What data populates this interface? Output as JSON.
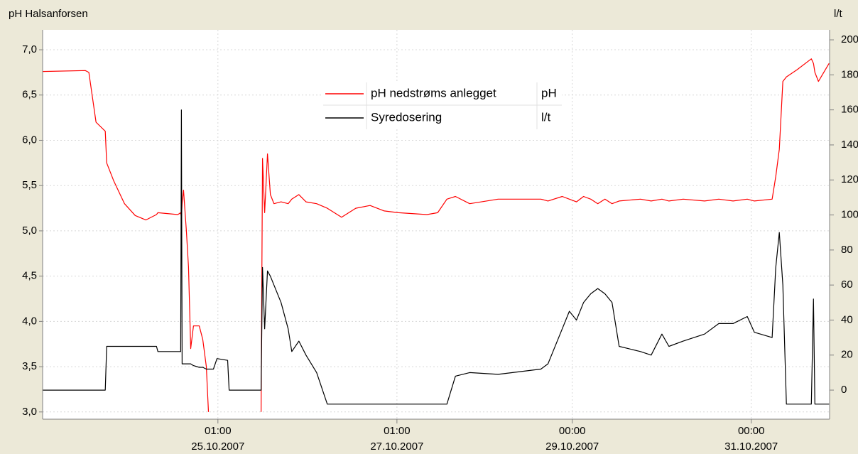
{
  "chart_data": {
    "type": "line",
    "title": "pH Halsanforsen",
    "y2label": "l/t",
    "xlim": [
      "2007-10-23 02:00",
      "2007-10-31 21:00"
    ],
    "xticks": [
      {
        "value": "2007-10-25 01:00",
        "label": [
          "01:00",
          "25.10.2007"
        ]
      },
      {
        "value": "2007-10-27 01:00",
        "label": [
          "01:00",
          "27.10.2007"
        ]
      },
      {
        "value": "2007-10-29 00:00",
        "label": [
          "00:00",
          "29.10.2007"
        ]
      },
      {
        "value": "2007-10-31 00:00",
        "label": [
          "00:00",
          "31.10.2007"
        ]
      }
    ],
    "ylim": [
      2.92,
      7.22
    ],
    "yticks": [
      {
        "value": 3,
        "label": "3,0"
      },
      {
        "value": 3.5,
        "label": "3,5"
      },
      {
        "value": 4,
        "label": "4,0"
      },
      {
        "value": 4.5,
        "label": "4,5"
      },
      {
        "value": 5,
        "label": "5,0"
      },
      {
        "value": 5.5,
        "label": "5,5"
      },
      {
        "value": 6,
        "label": "6,0"
      },
      {
        "value": 6.5,
        "label": "6,5"
      },
      {
        "value": 7,
        "label": "7,0"
      }
    ],
    "y2lim": [
      -16.6,
      205.7
    ],
    "y2ticks": [
      0,
      20,
      40,
      60,
      80,
      100,
      120,
      140,
      160,
      180,
      200
    ],
    "grid": true,
    "x": [
      "2007-10-23 02:00",
      "2007-10-23 13:27",
      "2007-10-23 14:24",
      "2007-10-23 16:19",
      "2007-10-23 18:48",
      "2007-10-23 19:11",
      "2007-10-23 21:05",
      "2007-10-23 23:57",
      "2007-10-24 02:49",
      "2007-10-24 05:40",
      "2007-10-24 08:32",
      "2007-10-24 08:55",
      "2007-10-24 14:16",
      "2007-10-24 15:01",
      "2007-10-24 15:13",
      "2007-10-24 15:24",
      "2007-10-24 15:47",
      "2007-10-24 16:33",
      "2007-10-24 17:07",
      "2007-10-24 17:42",
      "2007-10-24 18:27",
      "2007-10-24 19:59",
      "2007-10-24 20:56",
      "2007-10-24 21:54",
      "2007-10-24 22:28",
      "2007-10-24 23:48",
      "2007-10-25 00:45",
      "2007-10-25 03:37",
      "2007-10-25 04:00",
      "2007-10-25 12:12",
      "2007-10-25 12:35",
      "2007-10-25 12:58",
      "2007-10-25 13:32",
      "2007-10-25 14:18",
      "2007-10-25 15:04",
      "2007-10-25 16:01",
      "2007-10-25 17:56",
      "2007-10-25 19:50",
      "2007-10-25 20:48",
      "2007-10-25 22:42",
      "2007-10-26 00:37",
      "2007-10-26 03:28",
      "2007-10-26 06:20",
      "2007-10-26 10:09",
      "2007-10-26 13:58",
      "2007-10-26 17:47",
      "2007-10-26 21:36",
      "2007-10-27 01:25",
      "2007-10-27 09:03",
      "2007-10-27 11:55",
      "2007-10-27 14:24",
      "2007-10-27 16:41",
      "2007-10-27 20:30",
      "2007-10-28 04:08",
      "2007-10-28 15:35",
      "2007-10-28 17:30",
      "2007-10-28 21:19",
      "2007-10-28 23:13",
      "2007-10-29 01:08",
      "2007-10-29 03:02",
      "2007-10-29 04:57",
      "2007-10-29 06:51",
      "2007-10-29 08:46",
      "2007-10-29 10:40",
      "2007-10-29 12:35",
      "2007-10-29 18:18",
      "2007-10-29 21:10",
      "2007-10-30 00:02",
      "2007-10-30 01:56",
      "2007-10-30 05:45",
      "2007-10-30 11:29",
      "2007-10-30 15:18",
      "2007-10-30 19:07",
      "2007-10-30 22:56",
      "2007-10-31 00:50",
      "2007-10-31 05:36",
      "2007-10-31 06:34",
      "2007-10-31 07:31",
      "2007-10-31 08:28",
      "2007-10-31 09:25",
      "2007-10-31 12:17",
      "2007-10-31 16:06",
      "2007-10-31 16:41",
      "2007-10-31 17:03",
      "2007-10-31 18:01",
      "2007-10-31 20:52"
    ],
    "series": [
      {
        "name": "pH nedstrøms anlegget",
        "unit": "pH",
        "color": "#ff0000",
        "axis": "y",
        "values": [
          6.76,
          6.77,
          6.75,
          6.2,
          6.1,
          5.75,
          5.55,
          5.3,
          5.17,
          5.12,
          5.18,
          5.2,
          5.18,
          5.2,
          5.15,
          5.3,
          5.45,
          5.0,
          4.6,
          3.7,
          3.95,
          3.95,
          3.8,
          3.5,
          3.0,
          null,
          null,
          null,
          null,
          null,
          3.0,
          5.8,
          5.2,
          5.85,
          5.4,
          5.3,
          5.32,
          5.3,
          5.35,
          5.4,
          5.32,
          5.3,
          5.25,
          5.15,
          5.25,
          5.28,
          5.22,
          5.2,
          5.18,
          5.2,
          5.35,
          5.38,
          5.3,
          5.35,
          5.35,
          5.33,
          5.38,
          5.35,
          5.32,
          5.38,
          5.35,
          5.3,
          5.35,
          5.3,
          5.33,
          5.35,
          5.33,
          5.35,
          5.33,
          5.35,
          5.33,
          5.35,
          5.33,
          5.35,
          5.33,
          5.35,
          5.6,
          5.9,
          6.65,
          6.7,
          6.78,
          6.9,
          6.85,
          6.75,
          6.65,
          6.85
        ]
      },
      {
        "name": "Syredosering",
        "unit": "l/t",
        "color": "#000000",
        "axis": "y2",
        "values": [
          0,
          0,
          0,
          0,
          0,
          25,
          25,
          25,
          25,
          25,
          25,
          22,
          22,
          22,
          160,
          15,
          15,
          15,
          15,
          15,
          14,
          13,
          13,
          12,
          12,
          12,
          18,
          17,
          0,
          0,
          0,
          70,
          35,
          68,
          65,
          60,
          50,
          35,
          22,
          28,
          20,
          10,
          -8,
          -8,
          -8,
          -8,
          -8,
          -8,
          -8,
          -8,
          -8,
          8,
          10,
          9,
          12,
          15,
          35,
          45,
          40,
          50,
          55,
          58,
          55,
          50,
          25,
          22,
          20,
          32,
          25,
          28,
          32,
          38,
          38,
          42,
          33,
          30,
          70,
          90,
          60,
          -8,
          -8,
          -8,
          52,
          -8,
          -8,
          -8
        ]
      }
    ]
  }
}
